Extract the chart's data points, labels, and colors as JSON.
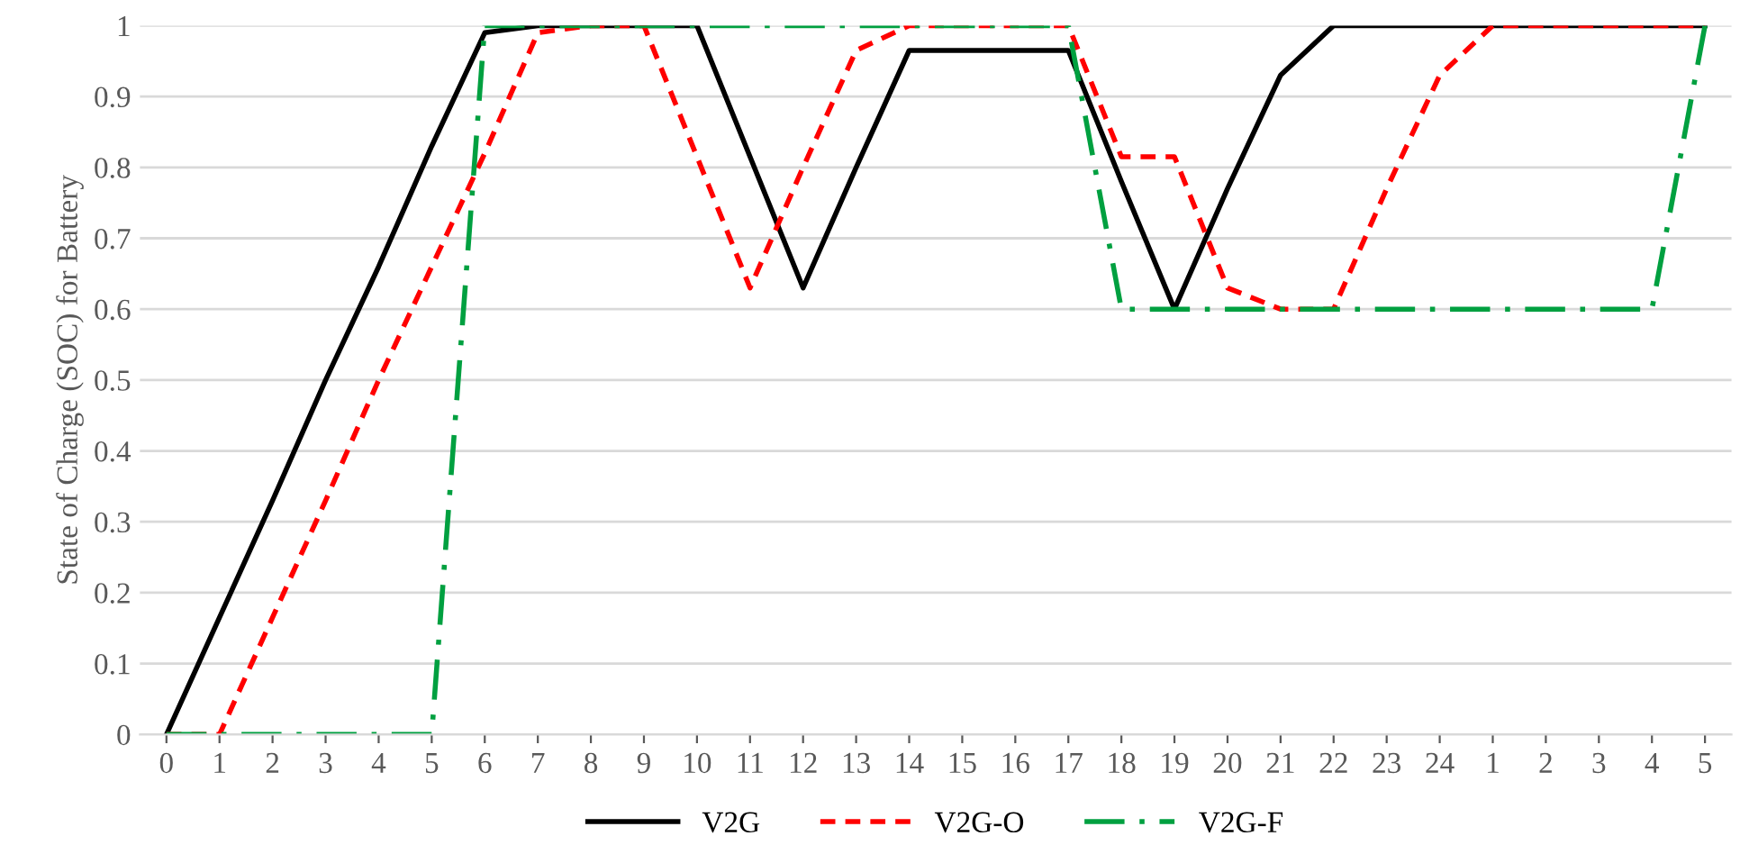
{
  "chart_data": {
    "type": "line",
    "ylabel": "State of Charge (SOC) for Battery",
    "categories": [
      "0",
      "1",
      "2",
      "3",
      "4",
      "5",
      "6",
      "7",
      "8",
      "9",
      "10",
      "11",
      "12",
      "13",
      "14",
      "15",
      "16",
      "17",
      "18",
      "19",
      "20",
      "21",
      "22",
      "23",
      "24",
      "1",
      "2",
      "3",
      "4",
      "5"
    ],
    "series": [
      {
        "name": "V2G",
        "color": "#000000",
        "line_style": "solid",
        "values": [
          0,
          0.165,
          0.33,
          0.5,
          0.66,
          0.83,
          0.99,
          1,
          1,
          1,
          1,
          0.815,
          0.63,
          0.8,
          0.965,
          0.965,
          0.965,
          0.965,
          0.78,
          0.6,
          0.77,
          0.93,
          1,
          1,
          1,
          1,
          1,
          1,
          1,
          1
        ]
      },
      {
        "name": "V2G-O",
        "color": "#ff0000",
        "line_style": "dashed",
        "values": [
          0,
          0,
          0.165,
          0.33,
          0.5,
          0.66,
          0.82,
          0.99,
          1,
          1,
          0.815,
          0.63,
          0.8,
          0.965,
          1,
          1,
          1,
          1,
          0.815,
          0.815,
          0.63,
          0.6,
          0.6,
          0.77,
          0.93,
          1,
          1,
          1,
          1,
          1
        ]
      },
      {
        "name": "V2G-F",
        "color": "#00a040",
        "line_style": "dashdot",
        "values": [
          0,
          0,
          0,
          0,
          0,
          0,
          1,
          1,
          1,
          1,
          1,
          1,
          1,
          1,
          1,
          1,
          1,
          1,
          0.6,
          0.6,
          0.6,
          0.6,
          0.6,
          0.6,
          0.6,
          0.6,
          0.6,
          0.6,
          0.6,
          1
        ]
      }
    ],
    "ylim": [
      0,
      1
    ],
    "yticks": [
      0,
      0.1,
      0.2,
      0.3,
      0.4,
      0.5,
      0.6,
      0.7,
      0.8,
      0.9,
      1
    ],
    "grid": "y",
    "legend": "bottom",
    "marker": "none"
  }
}
